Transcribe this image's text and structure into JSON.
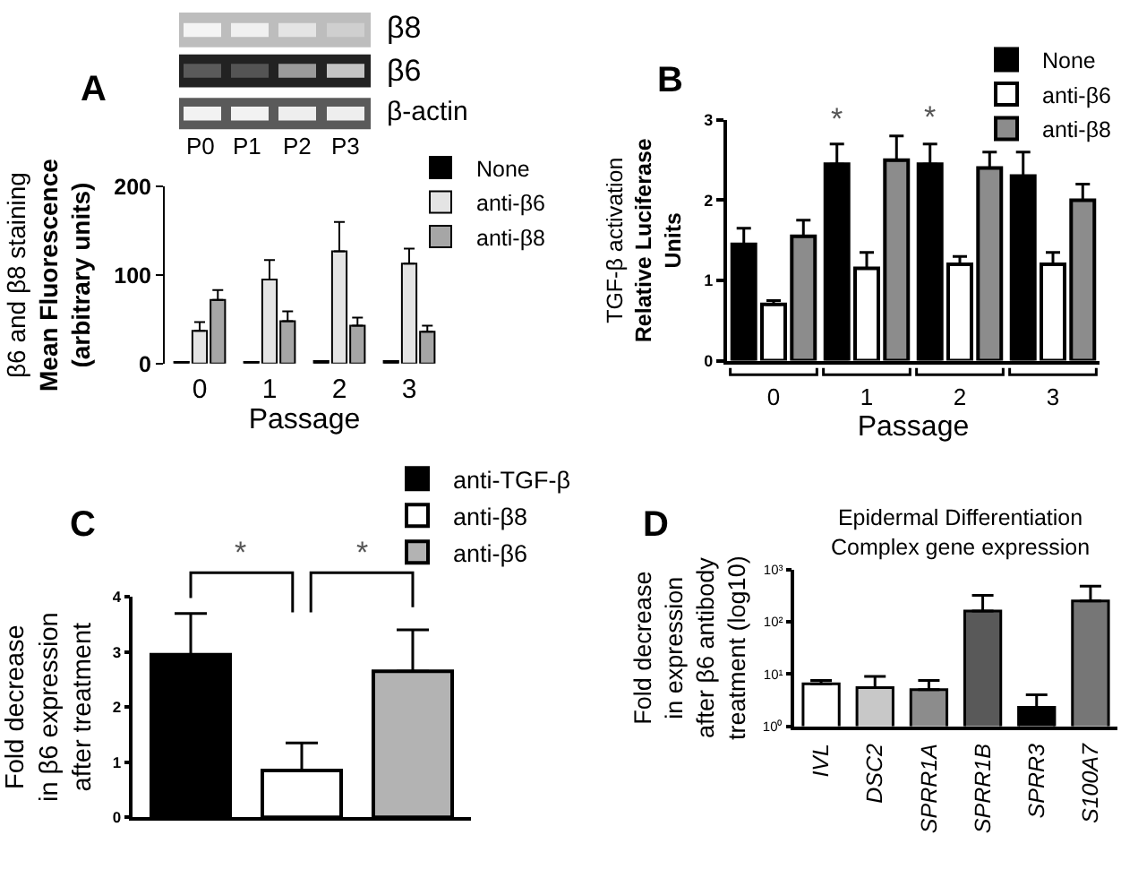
{
  "chart_data": [
    {
      "type": "bar",
      "annotations": [
        "A",
        "β8",
        "β6",
        "β-actin",
        "P0",
        "P1",
        "P2",
        "P3"
      ],
      "ylabel": "β6 and β8 staining\nMean Fluorescence\n(arbitrary units)",
      "xlabel": "Passage",
      "categories": [
        "0",
        "1",
        "2",
        "3"
      ],
      "series": [
        {
          "name": "None",
          "color": "#000000",
          "values": [
            2,
            2,
            3,
            3
          ]
        },
        {
          "name": "anti-β6",
          "color": "#e4e4e4",
          "values": [
            37,
            95,
            127,
            113
          ],
          "errors": [
            [
              37,
              47
            ],
            [
              95,
              117
            ],
            [
              127,
              160
            ],
            [
              113,
              130
            ]
          ]
        },
        {
          "name": "anti-β8",
          "color": "#a6a6a6",
          "values": [
            72,
            48,
            43,
            36
          ],
          "errors": [
            [
              72,
              83
            ],
            [
              48,
              59
            ],
            [
              43,
              52
            ],
            [
              36,
              43
            ]
          ]
        }
      ],
      "ylim": [
        0,
        200
      ],
      "yticks": [
        0,
        100,
        200
      ],
      "legend": "top right"
    },
    {
      "type": "bar",
      "annotations": [
        "B",
        "*",
        "*"
      ],
      "ylabel": "TGF-β activation\nRelative Luciferase\nUnits",
      "xlabel": "Passage",
      "categories": [
        "0",
        "1",
        "2",
        "3"
      ],
      "series": [
        {
          "name": "None",
          "color": "#000000",
          "values": [
            1.45,
            2.45,
            2.45,
            2.3
          ],
          "errors": [
            [
              1.45,
              1.65
            ],
            [
              2.45,
              2.7
            ],
            [
              2.45,
              2.7
            ],
            [
              2.3,
              2.6
            ]
          ]
        },
        {
          "name": "anti-β6",
          "color": "#ffffff",
          "values": [
            0.7,
            1.15,
            1.2,
            1.2
          ],
          "errors": [
            [
              0.7,
              0.75
            ],
            [
              1.15,
              1.35
            ],
            [
              1.2,
              1.3
            ],
            [
              1.2,
              1.35
            ]
          ]
        },
        {
          "name": "anti-β8",
          "color": "#8c8c8c",
          "values": [
            1.55,
            2.5,
            2.4,
            2.0
          ],
          "errors": [
            [
              1.55,
              1.75
            ],
            [
              2.5,
              2.8
            ],
            [
              2.4,
              2.6
            ],
            [
              2.0,
              2.2
            ]
          ]
        }
      ],
      "ylim": [
        0,
        3
      ],
      "yticks": [
        0,
        1,
        2,
        3
      ],
      "legend": "top right"
    },
    {
      "type": "bar",
      "annotations": [
        "C",
        "*",
        "*"
      ],
      "ylabel": "Fold decrease\nin β6 expression\nafter treatment",
      "categories": [
        null
      ],
      "series": [
        {
          "name": "anti-TGF-β",
          "color": "#000000",
          "values": [
            2.95
          ],
          "errors": [
            [
              2.95,
              3.7
            ]
          ]
        },
        {
          "name": "anti-β8",
          "color": "#ffffff",
          "values": [
            0.85
          ],
          "errors": [
            [
              0.85,
              1.35
            ]
          ]
        },
        {
          "name": "anti-β6",
          "color": "#b3b3b3",
          "values": [
            2.65
          ],
          "errors": [
            [
              2.65,
              3.4
            ]
          ]
        }
      ],
      "ylim": [
        0,
        4
      ],
      "yticks": [
        0,
        1,
        2,
        3,
        4
      ],
      "legend": "top right",
      "tick_labels": "y"
    },
    {
      "type": "bar",
      "title": "Epidermal Differentiation\nComplex gene expression",
      "annotations": [
        "D"
      ],
      "ylabel": "Fold decrease\nin expression\nafter β6 antibody\ntreatment (log10)",
      "categories": [
        "IVL",
        "DSC2",
        "SPRR1A",
        "SPRR1B",
        "SPRR3",
        "S100A7"
      ],
      "values": [
        6.5,
        5.5,
        5,
        160,
        2.3,
        250
      ],
      "errors": [
        [
          6.5,
          7.5
        ],
        [
          5.5,
          9
        ],
        [
          5,
          7.5
        ],
        [
          160,
          320
        ],
        [
          2.3,
          4
        ],
        [
          250,
          480
        ]
      ],
      "colors": [
        "#ffffff",
        "#c8c8c8",
        "#8c8c8c",
        "#595959",
        "#000000",
        "#767676"
      ],
      "log": true,
      "ylim": [
        1,
        1000
      ],
      "yticks": [
        {
          "value": 1,
          "label": "10⁰"
        },
        {
          "value": 10,
          "label": "10¹"
        },
        {
          "value": 100,
          "label": "10²"
        },
        {
          "value": 1000,
          "label": "10³"
        }
      ]
    }
  ]
}
